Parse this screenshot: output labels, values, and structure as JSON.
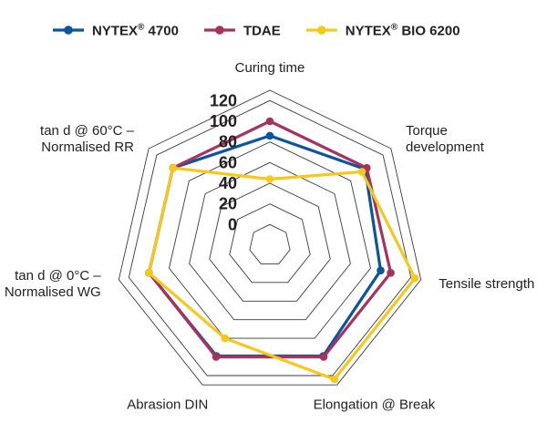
{
  "chart_data": {
    "type": "radar",
    "title": "",
    "axes": [
      "Curing time",
      "Torque development",
      "Tensile strength",
      "Elongation @ Break",
      "Abrasion DIN",
      "tan d @ 0°C – Normalised WG",
      "tan d @ 60°C – Normalised RR"
    ],
    "axis_label_lines": [
      [
        "Curing time"
      ],
      [
        "Torque",
        "development"
      ],
      [
        "Tensile strength"
      ],
      [
        "Elongation @ Break"
      ],
      [
        "Abrasion DIN"
      ],
      [
        "tan d @ 0°C –",
        "Normalised WG"
      ],
      [
        "tan d @ 60°C –",
        "Normalised RR"
      ]
    ],
    "r_ticks": [
      0,
      20,
      40,
      60,
      80,
      100,
      120
    ],
    "r_min": -20,
    "r_max": 130,
    "series": [
      {
        "name": "NYTEX® 4700",
        "color": "#0a55a0",
        "values": [
          86,
          98,
          90,
          99,
          99,
          100,
          100
        ]
      },
      {
        "name": "TDAE",
        "color": "#a8325e",
        "values": [
          100,
          100,
          100,
          100,
          100,
          100,
          100
        ]
      },
      {
        "name": "NYTEX® BIO 6200",
        "color": "#f6c81a",
        "values": [
          44,
          94,
          124,
          124,
          80,
          100,
          100
        ]
      }
    ],
    "legend": [
      {
        "prefix": "NYTEX",
        "reg": "®",
        "suffix": " 4700",
        "color": "#0a55a0"
      },
      {
        "prefix": "TDAE",
        "reg": "",
        "suffix": "",
        "color": "#a8325e"
      },
      {
        "prefix": "NYTEX",
        "reg": "®",
        "suffix": " BIO 6200",
        "color": "#f6c81a"
      }
    ],
    "legend_position": "top",
    "grid": true
  }
}
